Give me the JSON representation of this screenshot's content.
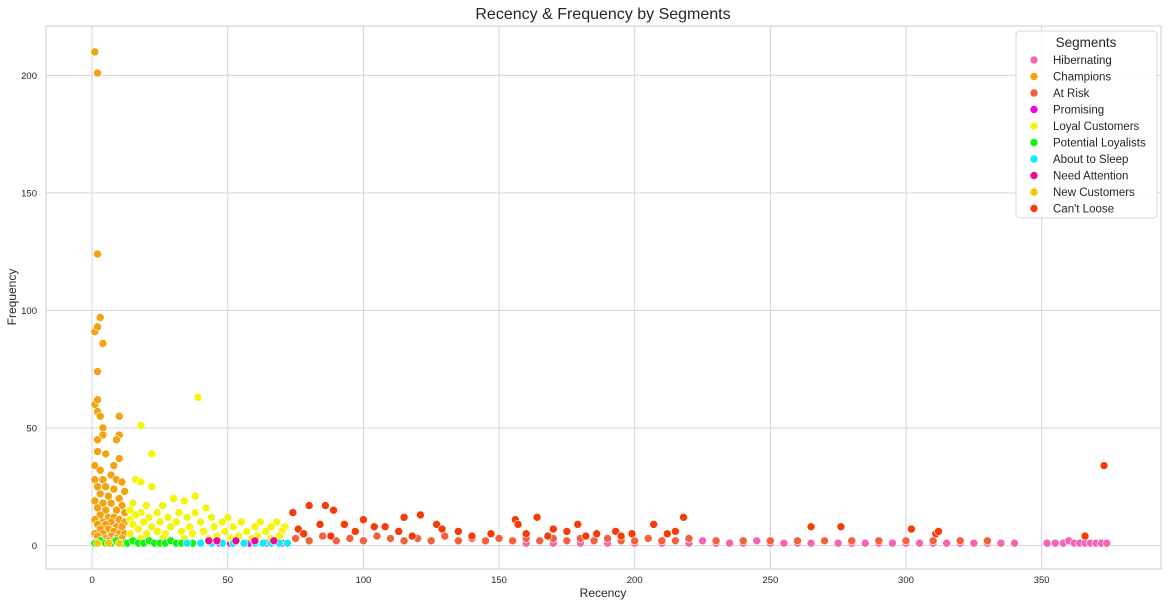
{
  "chart_data": {
    "type": "scatter",
    "title": "Recency & Frequency by Segments",
    "xlabel": "Recency",
    "ylabel": "Frequency",
    "xlim": [
      -17,
      394
    ],
    "ylim": [
      -10,
      221
    ],
    "xticks": [
      0,
      50,
      100,
      150,
      200,
      250,
      300,
      350
    ],
    "yticks": [
      0,
      50,
      100,
      150,
      200
    ],
    "grid": true,
    "legend": {
      "title": "Segments",
      "placement": "top-right"
    },
    "series": [
      {
        "name": "Hibernating",
        "color": "#f564b4",
        "points": [
          [
            160,
            1
          ],
          [
            170,
            1
          ],
          [
            180,
            1
          ],
          [
            190,
            1
          ],
          [
            200,
            1
          ],
          [
            210,
            1
          ],
          [
            220,
            1
          ],
          [
            225,
            2
          ],
          [
            230,
            1
          ],
          [
            235,
            1
          ],
          [
            240,
            1
          ],
          [
            245,
            2
          ],
          [
            250,
            1
          ],
          [
            255,
            1
          ],
          [
            260,
            1
          ],
          [
            265,
            1
          ],
          [
            270,
            2
          ],
          [
            275,
            1
          ],
          [
            280,
            1
          ],
          [
            285,
            1
          ],
          [
            290,
            1
          ],
          [
            295,
            1
          ],
          [
            300,
            1
          ],
          [
            305,
            1
          ],
          [
            310,
            1
          ],
          [
            315,
            1
          ],
          [
            320,
            1
          ],
          [
            325,
            1
          ],
          [
            330,
            1
          ],
          [
            335,
            1
          ],
          [
            340,
            1
          ],
          [
            352,
            1
          ],
          [
            355,
            1
          ],
          [
            358,
            1
          ],
          [
            360,
            2
          ],
          [
            362,
            1
          ],
          [
            364,
            1
          ],
          [
            366,
            1
          ],
          [
            368,
            1
          ],
          [
            370,
            1
          ],
          [
            372,
            1
          ],
          [
            374,
            1
          ]
        ]
      },
      {
        "name": "Champions",
        "color": "#f4a20f",
        "points": [
          [
            1,
            210
          ],
          [
            2,
            201
          ],
          [
            2,
            124
          ],
          [
            3,
            97
          ],
          [
            1,
            91
          ],
          [
            2,
            93
          ],
          [
            4,
            86
          ],
          [
            2,
            74
          ],
          [
            1,
            60
          ],
          [
            2,
            62
          ],
          [
            2,
            57
          ],
          [
            3,
            55
          ],
          [
            10,
            55
          ],
          [
            4,
            50
          ],
          [
            4,
            47
          ],
          [
            10,
            47
          ],
          [
            2,
            45
          ],
          [
            9,
            45
          ],
          [
            2,
            40
          ],
          [
            5,
            39
          ],
          [
            10,
            37
          ],
          [
            1,
            34
          ],
          [
            8,
            34
          ],
          [
            3,
            32
          ],
          [
            7,
            30
          ],
          [
            1,
            28
          ],
          [
            4,
            28
          ],
          [
            9,
            28
          ],
          [
            11,
            27
          ],
          [
            2,
            25
          ],
          [
            5,
            25
          ],
          [
            8,
            24
          ],
          [
            12,
            23
          ],
          [
            3,
            22
          ],
          [
            6,
            21
          ],
          [
            10,
            20
          ],
          [
            1,
            19
          ],
          [
            4,
            18
          ],
          [
            7,
            18
          ],
          [
            11,
            17
          ],
          [
            2,
            16
          ],
          [
            5,
            15
          ],
          [
            9,
            15
          ],
          [
            12,
            14
          ],
          [
            3,
            13
          ],
          [
            6,
            12
          ],
          [
            8,
            12
          ],
          [
            1,
            11
          ],
          [
            10,
            11
          ],
          [
            4,
            10
          ],
          [
            7,
            10
          ],
          [
            12,
            10
          ],
          [
            2,
            9
          ],
          [
            5,
            9
          ],
          [
            9,
            8
          ],
          [
            11,
            8
          ],
          [
            3,
            7
          ],
          [
            6,
            7
          ],
          [
            8,
            6
          ],
          [
            1,
            5
          ],
          [
            4,
            5
          ],
          [
            10,
            5
          ],
          [
            12,
            5
          ],
          [
            2,
            4
          ],
          [
            7,
            4
          ],
          [
            5,
            3
          ],
          [
            9,
            3
          ],
          [
            11,
            3
          ],
          [
            3,
            2
          ],
          [
            6,
            2
          ],
          [
            8,
            2
          ]
        ]
      },
      {
        "name": "At Risk",
        "color": "#f2603e",
        "points": [
          [
            75,
            3
          ],
          [
            80,
            2
          ],
          [
            85,
            4
          ],
          [
            90,
            2
          ],
          [
            95,
            3
          ],
          [
            100,
            2
          ],
          [
            105,
            4
          ],
          [
            110,
            3
          ],
          [
            115,
            2
          ],
          [
            120,
            3
          ],
          [
            125,
            2
          ],
          [
            130,
            4
          ],
          [
            135,
            2
          ],
          [
            140,
            3
          ],
          [
            145,
            2
          ],
          [
            150,
            3
          ],
          [
            155,
            2
          ],
          [
            160,
            3
          ],
          [
            165,
            2
          ],
          [
            170,
            3
          ],
          [
            175,
            2
          ],
          [
            180,
            3
          ],
          [
            185,
            2
          ],
          [
            190,
            3
          ],
          [
            195,
            2
          ],
          [
            200,
            2
          ],
          [
            205,
            3
          ],
          [
            210,
            2
          ],
          [
            215,
            2
          ],
          [
            220,
            3
          ],
          [
            230,
            2
          ],
          [
            240,
            2
          ],
          [
            250,
            2
          ],
          [
            260,
            2
          ],
          [
            270,
            2
          ],
          [
            280,
            2
          ],
          [
            290,
            2
          ],
          [
            300,
            2
          ],
          [
            310,
            2
          ],
          [
            320,
            2
          ],
          [
            330,
            2
          ]
        ]
      },
      {
        "name": "Promising",
        "color": "#f205dd",
        "points": [
          [
            37,
            1
          ],
          [
            40,
            1
          ],
          [
            47,
            1
          ],
          [
            51,
            1
          ],
          [
            58,
            1
          ],
          [
            64,
            1
          ],
          [
            70,
            1
          ]
        ]
      },
      {
        "name": "Loyal Customers",
        "color": "#f5f50a",
        "points": [
          [
            39,
            63
          ],
          [
            18,
            51
          ],
          [
            22,
            39
          ],
          [
            16,
            28
          ],
          [
            18,
            27
          ],
          [
            22,
            25
          ],
          [
            38,
            21
          ],
          [
            30,
            20
          ],
          [
            34,
            19
          ],
          [
            15,
            18
          ],
          [
            20,
            17
          ],
          [
            26,
            17
          ],
          [
            42,
            16
          ],
          [
            14,
            15
          ],
          [
            18,
            14
          ],
          [
            24,
            14
          ],
          [
            32,
            14
          ],
          [
            38,
            14
          ],
          [
            16,
            13
          ],
          [
            21,
            12
          ],
          [
            28,
            12
          ],
          [
            35,
            12
          ],
          [
            44,
            12
          ],
          [
            50,
            12
          ],
          [
            14,
            11
          ],
          [
            19,
            10
          ],
          [
            25,
            10
          ],
          [
            31,
            10
          ],
          [
            40,
            10
          ],
          [
            48,
            10
          ],
          [
            55,
            10
          ],
          [
            62,
            10
          ],
          [
            68,
            10
          ],
          [
            15,
            9
          ],
          [
            22,
            8
          ],
          [
            29,
            8
          ],
          [
            36,
            8
          ],
          [
            45,
            8
          ],
          [
            52,
            8
          ],
          [
            60,
            8
          ],
          [
            66,
            8
          ],
          [
            71,
            8
          ],
          [
            17,
            7
          ],
          [
            24,
            6
          ],
          [
            33,
            6
          ],
          [
            41,
            6
          ],
          [
            49,
            6
          ],
          [
            57,
            6
          ],
          [
            64,
            6
          ],
          [
            70,
            6
          ],
          [
            14,
            5
          ],
          [
            20,
            5
          ],
          [
            27,
            5
          ],
          [
            37,
            5
          ],
          [
            46,
            4
          ],
          [
            54,
            4
          ],
          [
            61,
            4
          ],
          [
            69,
            4
          ],
          [
            18,
            3
          ],
          [
            26,
            3
          ],
          [
            34,
            3
          ],
          [
            43,
            3
          ],
          [
            51,
            3
          ],
          [
            59,
            3
          ],
          [
            66,
            3
          ]
        ]
      },
      {
        "name": "Potential Loyalists",
        "color": "#0ef50e",
        "points": [
          [
            1,
            1
          ],
          [
            3,
            2
          ],
          [
            5,
            1
          ],
          [
            7,
            1
          ],
          [
            9,
            2
          ],
          [
            11,
            1
          ],
          [
            13,
            1
          ],
          [
            15,
            2
          ],
          [
            17,
            1
          ],
          [
            19,
            1
          ],
          [
            21,
            2
          ],
          [
            23,
            1
          ],
          [
            25,
            1
          ],
          [
            27,
            1
          ],
          [
            29,
            2
          ],
          [
            31,
            1
          ],
          [
            33,
            1
          ],
          [
            35,
            1
          ],
          [
            37,
            1
          ]
        ]
      },
      {
        "name": "About to Sleep",
        "color": "#0aeef5",
        "points": [
          [
            35,
            1
          ],
          [
            40,
            1
          ],
          [
            44,
            1
          ],
          [
            48,
            1
          ],
          [
            52,
            1
          ],
          [
            56,
            1
          ],
          [
            60,
            1
          ],
          [
            63,
            1
          ],
          [
            66,
            1
          ],
          [
            69,
            1
          ],
          [
            72,
            1
          ]
        ]
      },
      {
        "name": "Need Attention",
        "color": "#ed0c8f",
        "points": [
          [
            43,
            2
          ],
          [
            46,
            2
          ],
          [
            53,
            2
          ],
          [
            60,
            2
          ],
          [
            67,
            2
          ]
        ]
      },
      {
        "name": "New Customers",
        "color": "#f5c800",
        "points": [
          [
            2,
            1
          ],
          [
            6,
            1
          ],
          [
            10,
            1
          ]
        ]
      },
      {
        "name": "Can't Loose",
        "color": "#f53c08",
        "points": [
          [
            373,
            34
          ],
          [
            74,
            14
          ],
          [
            80,
            17
          ],
          [
            86,
            17
          ],
          [
            89,
            15
          ],
          [
            100,
            11
          ],
          [
            104,
            8
          ],
          [
            108,
            8
          ],
          [
            115,
            12
          ],
          [
            121,
            13
          ],
          [
            127,
            9
          ],
          [
            129,
            7
          ],
          [
            156,
            11
          ],
          [
            157,
            9
          ],
          [
            164,
            12
          ],
          [
            170,
            7
          ],
          [
            179,
            9
          ],
          [
            193,
            6
          ],
          [
            207,
            9
          ],
          [
            215,
            6
          ],
          [
            218,
            12
          ],
          [
            265,
            8
          ],
          [
            276,
            8
          ],
          [
            302,
            7
          ],
          [
            311,
            5
          ],
          [
            76,
            7
          ],
          [
            84,
            9
          ],
          [
            93,
            9
          ],
          [
            97,
            6
          ],
          [
            113,
            6
          ],
          [
            135,
            6
          ],
          [
            147,
            5
          ],
          [
            160,
            5
          ],
          [
            175,
            6
          ],
          [
            186,
            5
          ],
          [
            199,
            5
          ],
          [
            212,
            5
          ],
          [
            312,
            6
          ],
          [
            366,
            4
          ],
          [
            78,
            5
          ],
          [
            88,
            4
          ],
          [
            118,
            4
          ],
          [
            140,
            4
          ],
          [
            168,
            4
          ],
          [
            182,
            4
          ],
          [
            195,
            4
          ]
        ]
      }
    ]
  }
}
